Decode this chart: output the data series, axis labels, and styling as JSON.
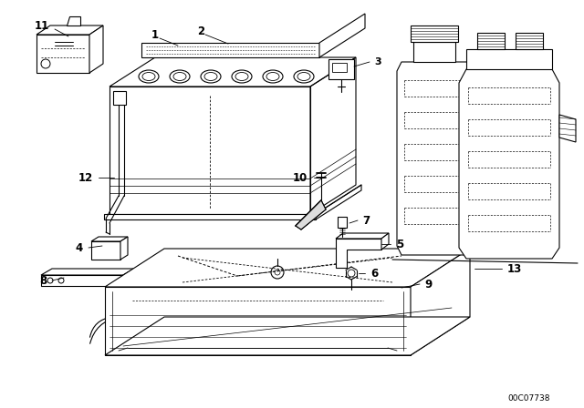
{
  "bg_color": "#ffffff",
  "line_color": "#000000",
  "diagram_id": "00C07738",
  "fig_width": 6.4,
  "fig_height": 4.48,
  "dpi": 100
}
